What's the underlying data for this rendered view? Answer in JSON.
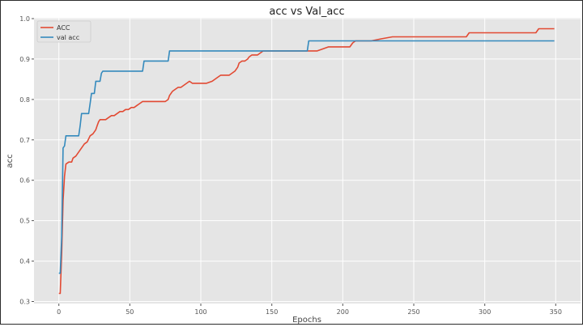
{
  "chart_data": {
    "type": "line",
    "title": "acc vs Val_acc",
    "xlabel": "Epochs",
    "ylabel": "acc",
    "xlim": [
      -17.5,
      367.5
    ],
    "ylim": [
      0.295,
      1.002
    ],
    "grid": true,
    "legend": "top-left",
    "x_ticks": [
      0,
      50,
      100,
      150,
      200,
      250,
      300,
      350
    ],
    "y_ticks": [
      0.3,
      0.4,
      0.5,
      0.6,
      0.7,
      0.8,
      0.9,
      1.0
    ],
    "y_tick_labels": [
      "0.3",
      "0.4",
      "0.5",
      "0.6",
      "0.7",
      "0.8",
      "0.9",
      "1.0"
    ],
    "series": [
      {
        "name": "ACC",
        "color": "#e24a33",
        "points": [
          [
            0,
            0.32
          ],
          [
            1,
            0.32
          ],
          [
            2,
            0.42
          ],
          [
            3,
            0.55
          ],
          [
            4,
            0.61
          ],
          [
            5,
            0.64
          ],
          [
            7,
            0.645
          ],
          [
            9,
            0.645
          ],
          [
            10,
            0.655
          ],
          [
            12,
            0.66
          ],
          [
            14,
            0.67
          ],
          [
            16,
            0.68
          ],
          [
            18,
            0.69
          ],
          [
            20,
            0.695
          ],
          [
            22,
            0.71
          ],
          [
            24,
            0.715
          ],
          [
            26,
            0.725
          ],
          [
            27,
            0.735
          ],
          [
            28,
            0.745
          ],
          [
            29,
            0.75
          ],
          [
            31,
            0.75
          ],
          [
            33,
            0.75
          ],
          [
            35,
            0.755
          ],
          [
            37,
            0.76
          ],
          [
            39,
            0.76
          ],
          [
            41,
            0.765
          ],
          [
            43,
            0.77
          ],
          [
            45,
            0.77
          ],
          [
            47,
            0.775
          ],
          [
            49,
            0.775
          ],
          [
            51,
            0.78
          ],
          [
            53,
            0.78
          ],
          [
            55,
            0.785
          ],
          [
            57,
            0.79
          ],
          [
            59,
            0.795
          ],
          [
            61,
            0.795
          ],
          [
            63,
            0.795
          ],
          [
            66,
            0.795
          ],
          [
            70,
            0.795
          ],
          [
            75,
            0.795
          ],
          [
            77,
            0.8
          ],
          [
            78,
            0.81
          ],
          [
            80,
            0.82
          ],
          [
            82,
            0.825
          ],
          [
            84,
            0.83
          ],
          [
            86,
            0.83
          ],
          [
            88,
            0.835
          ],
          [
            90,
            0.84
          ],
          [
            92,
            0.845
          ],
          [
            94,
            0.84
          ],
          [
            96,
            0.84
          ],
          [
            100,
            0.84
          ],
          [
            104,
            0.84
          ],
          [
            108,
            0.845
          ],
          [
            110,
            0.85
          ],
          [
            112,
            0.855
          ],
          [
            114,
            0.86
          ],
          [
            116,
            0.86
          ],
          [
            120,
            0.86
          ],
          [
            122,
            0.865
          ],
          [
            124,
            0.87
          ],
          [
            126,
            0.88
          ],
          [
            127,
            0.89
          ],
          [
            129,
            0.895
          ],
          [
            131,
            0.895
          ],
          [
            133,
            0.9
          ],
          [
            134,
            0.905
          ],
          [
            136,
            0.91
          ],
          [
            138,
            0.91
          ],
          [
            140,
            0.91
          ],
          [
            142,
            0.915
          ],
          [
            144,
            0.92
          ],
          [
            150,
            0.92
          ],
          [
            160,
            0.92
          ],
          [
            170,
            0.92
          ],
          [
            178,
            0.92
          ],
          [
            182,
            0.92
          ],
          [
            186,
            0.925
          ],
          [
            190,
            0.93
          ],
          [
            198,
            0.93
          ],
          [
            205,
            0.93
          ],
          [
            207,
            0.94
          ],
          [
            209,
            0.945
          ],
          [
            220,
            0.945
          ],
          [
            227,
            0.95
          ],
          [
            235,
            0.955
          ],
          [
            250,
            0.955
          ],
          [
            270,
            0.955
          ],
          [
            287,
            0.955
          ],
          [
            289,
            0.965
          ],
          [
            300,
            0.965
          ],
          [
            320,
            0.965
          ],
          [
            336,
            0.965
          ],
          [
            338,
            0.975
          ],
          [
            349,
            0.975
          ]
        ]
      },
      {
        "name": "val acc",
        "color": "#348abd",
        "points": [
          [
            0,
            0.37
          ],
          [
            1,
            0.37
          ],
          [
            2,
            0.46
          ],
          [
            3,
            0.68
          ],
          [
            4,
            0.685
          ],
          [
            5,
            0.71
          ],
          [
            8,
            0.71
          ],
          [
            12,
            0.71
          ],
          [
            14,
            0.71
          ],
          [
            15,
            0.735
          ],
          [
            16,
            0.765
          ],
          [
            20,
            0.765
          ],
          [
            21,
            0.765
          ],
          [
            22,
            0.79
          ],
          [
            23,
            0.815
          ],
          [
            25,
            0.815
          ],
          [
            26,
            0.845
          ],
          [
            29,
            0.845
          ],
          [
            30,
            0.865
          ],
          [
            31,
            0.87
          ],
          [
            40,
            0.87
          ],
          [
            50,
            0.87
          ],
          [
            59,
            0.87
          ],
          [
            60,
            0.895
          ],
          [
            70,
            0.895
          ],
          [
            77,
            0.895
          ],
          [
            78,
            0.92
          ],
          [
            100,
            0.92
          ],
          [
            150,
            0.92
          ],
          [
            175,
            0.92
          ],
          [
            176,
            0.945
          ],
          [
            200,
            0.945
          ],
          [
            250,
            0.945
          ],
          [
            300,
            0.945
          ],
          [
            349,
            0.945
          ]
        ]
      }
    ]
  }
}
